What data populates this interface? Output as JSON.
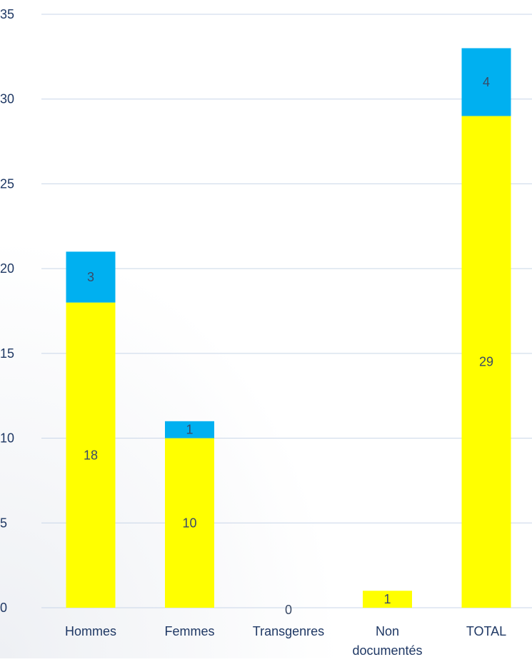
{
  "chart_data": {
    "type": "bar",
    "stacked": true,
    "title": "",
    "xlabel": "",
    "ylabel": "",
    "categories": [
      [
        "Hommes"
      ],
      [
        "Femmes"
      ],
      [
        "Transgenres"
      ],
      [
        "Non",
        "documentés"
      ],
      [
        "TOTAL"
      ]
    ],
    "series": [
      {
        "color": "#ffff00",
        "values": [
          18,
          10,
          0,
          1,
          29
        ]
      },
      {
        "color": "#00b0f0",
        "values": [
          3,
          1,
          0,
          0,
          4
        ]
      }
    ],
    "ylim": [
      0,
      35
    ],
    "yticks": [
      0,
      5,
      10,
      15,
      20,
      25,
      30,
      35
    ],
    "grid": true,
    "legend": "none",
    "zero_labels": [
      2
    ]
  }
}
